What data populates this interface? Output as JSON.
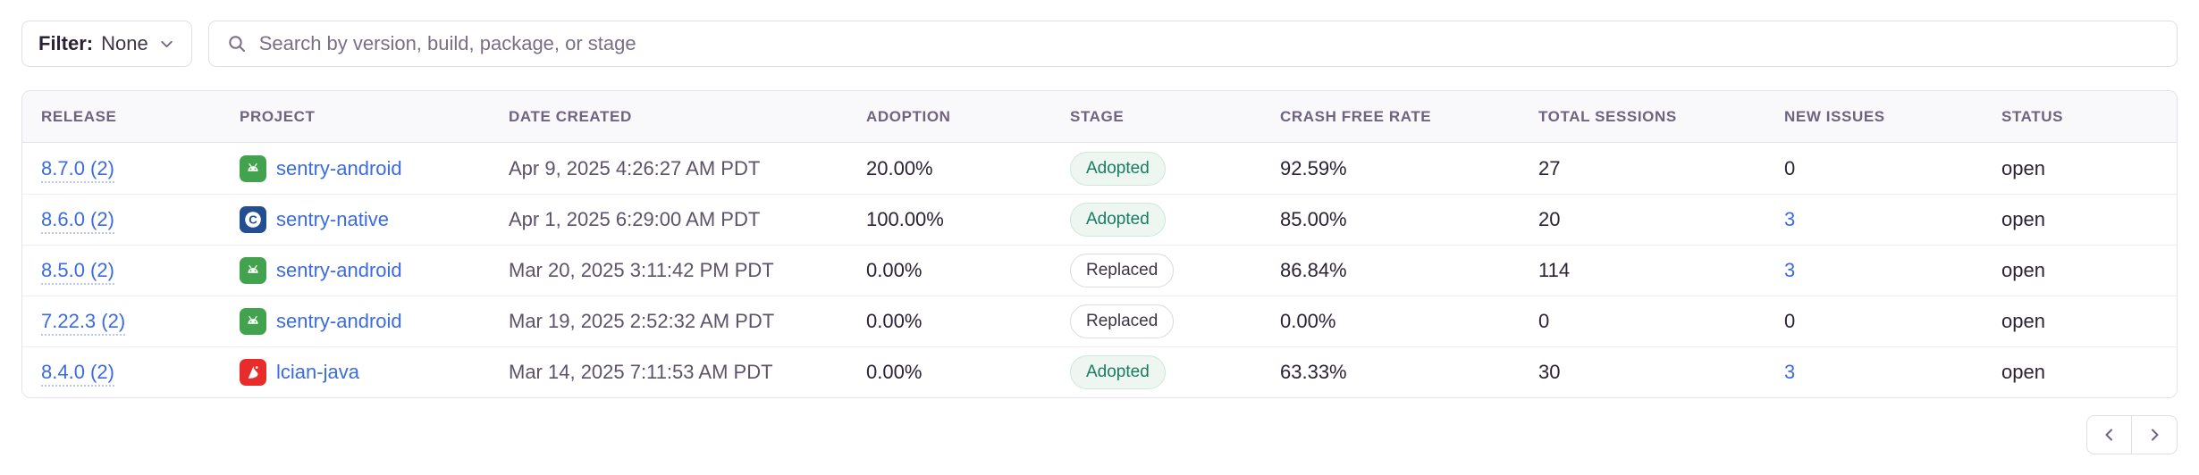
{
  "filter": {
    "label": "Filter:",
    "value": "None"
  },
  "search": {
    "placeholder": "Search by version, build, package, or stage"
  },
  "table": {
    "headers": [
      "RELEASE",
      "PROJECT",
      "DATE CREATED",
      "ADOPTION",
      "STAGE",
      "CRASH FREE RATE",
      "TOTAL SESSIONS",
      "NEW ISSUES",
      "STATUS"
    ],
    "rows": [
      {
        "release": "8.7.0 (2)",
        "project": "sentry-android",
        "project_icon": "android-icon",
        "date": "Apr 9, 2025 4:26:27 AM PDT",
        "adoption": "20.00%",
        "stage": "Adopted",
        "crash_free": "92.59%",
        "sessions": "27",
        "new_issues": "0",
        "new_issues_link": false,
        "status": "open"
      },
      {
        "release": "8.6.0 (2)",
        "project": "sentry-native",
        "project_icon": "c-icon",
        "date": "Apr 1, 2025 6:29:00 AM PDT",
        "adoption": "100.00%",
        "stage": "Adopted",
        "crash_free": "85.00%",
        "sessions": "20",
        "new_issues": "3",
        "new_issues_link": true,
        "status": "open"
      },
      {
        "release": "8.5.0 (2)",
        "project": "sentry-android",
        "project_icon": "android-icon",
        "date": "Mar 20, 2025 3:11:42 PM PDT",
        "adoption": "0.00%",
        "stage": "Replaced",
        "crash_free": "86.84%",
        "sessions": "114",
        "new_issues": "3",
        "new_issues_link": true,
        "status": "open"
      },
      {
        "release": "7.22.3 (2)",
        "project": "sentry-android",
        "project_icon": "android-icon",
        "date": "Mar 19, 2025 2:52:32 AM PDT",
        "adoption": "0.00%",
        "stage": "Replaced",
        "crash_free": "0.00%",
        "sessions": "0",
        "new_issues": "0",
        "new_issues_link": false,
        "status": "open"
      },
      {
        "release": "8.4.0 (2)",
        "project": "lcian-java",
        "project_icon": "java-icon",
        "date": "Mar 14, 2025 7:11:53 AM PDT",
        "adoption": "0.00%",
        "stage": "Adopted",
        "crash_free": "63.33%",
        "sessions": "30",
        "new_issues": "3",
        "new_issues_link": true,
        "status": "open"
      }
    ]
  },
  "colors": {
    "link_blue": "#3b6be0",
    "adopted_green": "#187c63",
    "android_green": "#42a24e",
    "native_navy": "#234e92",
    "java_red": "#e82c2c",
    "border": "#e2dee6",
    "header_text": "#6f6380"
  }
}
